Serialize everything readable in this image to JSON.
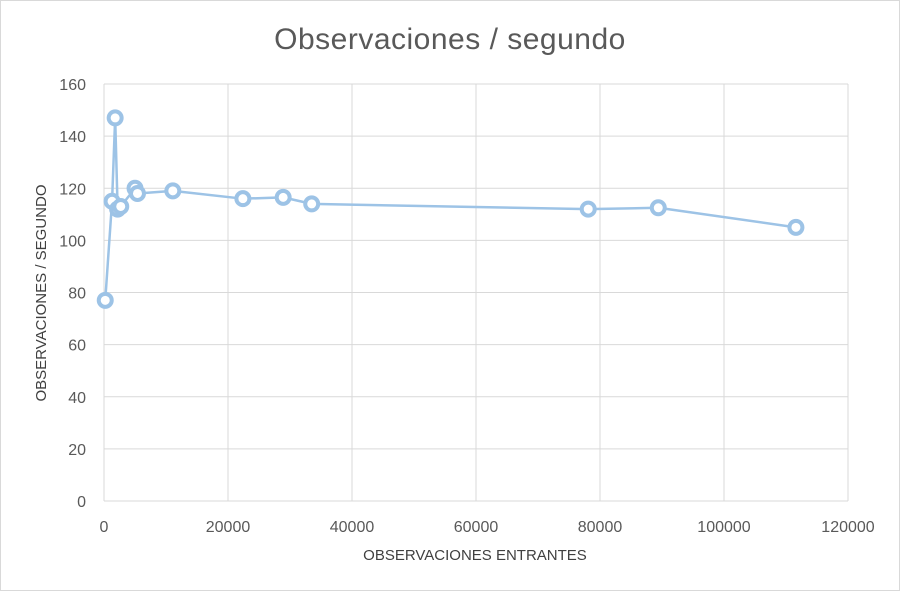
{
  "chart_data": {
    "type": "scatter",
    "title": "Observaciones / segundo",
    "xlabel": "OBSERVACIONES ENTRANTES",
    "ylabel": "OBSERVACIONES / SEGUNDO",
    "xlim": [
      0,
      120000
    ],
    "ylim": [
      0,
      160
    ],
    "xticks": [
      0,
      20000,
      40000,
      60000,
      80000,
      100000,
      120000
    ],
    "yticks": [
      0,
      20,
      40,
      60,
      80,
      100,
      120,
      140,
      160
    ],
    "grid": true,
    "legend": "none",
    "color": "#9dc3e6",
    "series": [
      {
        "x": [
          200,
          1300,
          1800,
          2200,
          2700,
          5000,
          5400,
          11100,
          22400,
          28900,
          33500,
          78100,
          89400,
          111600
        ],
        "y": [
          77,
          115,
          147,
          112,
          113,
          120,
          118,
          119,
          116,
          116.5,
          114,
          112,
          112.5,
          105
        ]
      }
    ]
  }
}
